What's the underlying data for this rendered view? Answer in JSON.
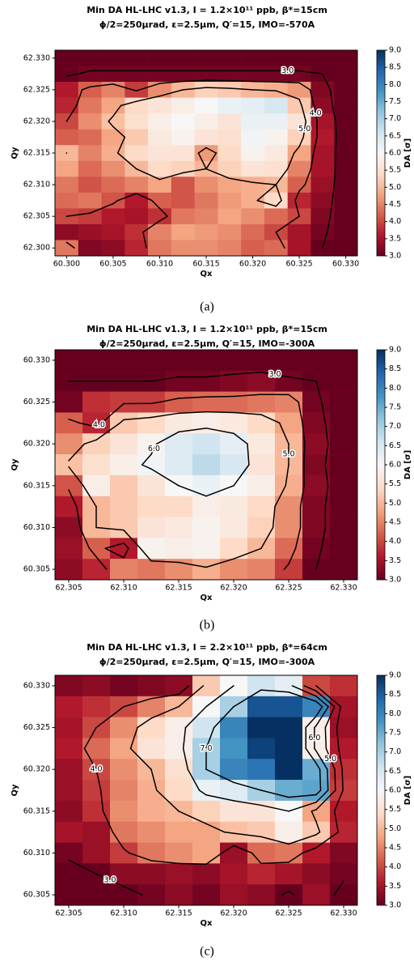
{
  "chart_data": [
    {
      "type": "heatmap",
      "caption": "(a)",
      "title": "Min DA HL-LHC v1.3, I = 1.2×10¹¹ ppb, β*=15cm",
      "subtitle": "ϕ/2=250μrad, ε=2.5μm, Q′=15, IMO=-570A",
      "xlabel": "Qx",
      "ylabel": "Qy",
      "cmap": "RdBu",
      "xlim": [
        60.29875,
        60.33125
      ],
      "ylim": [
        62.29875,
        62.33125
      ],
      "xticks": [
        {
          "value": 60.3,
          "label": "60.300"
        },
        60.305,
        {
          "value": 60.31,
          "label": "60.310"
        },
        60.315,
        {
          "value": 60.32,
          "label": "60.320"
        },
        60.325,
        {
          "value": 60.33,
          "label": "60.330"
        }
      ],
      "yticks": [
        {
          "value": 62.3,
          "label": "62.300"
        },
        62.305,
        {
          "value": 62.31,
          "label": "62.310"
        },
        62.315,
        {
          "value": 62.32,
          "label": "62.320"
        },
        62.325,
        {
          "value": 62.33,
          "label": "62.330"
        }
      ],
      "x": [
        60.3,
        60.3025,
        60.305,
        60.3075,
        60.31,
        60.3125,
        60.315,
        60.3175,
        60.32,
        60.3225,
        60.325,
        60.3275,
        60.33
      ],
      "y": [
        62.33,
        62.3275,
        62.325,
        62.3225,
        62.32,
        62.3175,
        62.315,
        62.3125,
        62.31,
        62.3075,
        62.305,
        62.3025,
        62.3
      ],
      "z": [
        [
          2.6,
          2.6,
          2.6,
          2.6,
          2.6,
          2.6,
          2.6,
          2.6,
          2.6,
          2.6,
          2.6,
          2.6,
          2.6
        ],
        [
          2.9,
          3.1,
          3.1,
          3.1,
          3.1,
          3.1,
          3.1,
          3.1,
          3.1,
          3.1,
          3.1,
          3.0,
          2.6
        ],
        [
          3.6,
          4.2,
          4.5,
          3.9,
          4.6,
          5.0,
          5.3,
          5.2,
          5.0,
          4.9,
          4.7,
          3.2,
          2.6
        ],
        [
          3.7,
          4.4,
          4.8,
          5.4,
          5.6,
          5.8,
          6.0,
          6.2,
          6.3,
          6.5,
          5.2,
          3.3,
          2.6
        ],
        [
          4.0,
          4.6,
          5.1,
          5.5,
          5.8,
          6.0,
          5.8,
          5.6,
          6.2,
          6.2,
          5.6,
          3.5,
          2.6
        ],
        [
          4.2,
          4.3,
          4.8,
          5.2,
          5.7,
          5.9,
          5.6,
          5.5,
          6.1,
          5.9,
          5.3,
          3.6,
          2.6
        ],
        [
          5.0,
          4.5,
          4.9,
          5.4,
          5.6,
          5.6,
          4.7,
          5.4,
          5.9,
          5.7,
          4.8,
          3.5,
          2.6
        ],
        [
          4.8,
          4.3,
          4.6,
          5.0,
          5.4,
          5.3,
          5.0,
          5.3,
          5.6,
          5.5,
          4.5,
          3.5,
          2.6
        ],
        [
          4.4,
          4.1,
          4.3,
          4.5,
          4.8,
          4.1,
          4.6,
          4.8,
          4.9,
          5.0,
          4.2,
          3.4,
          2.6
        ],
        [
          4.3,
          4.4,
          4.1,
          3.6,
          4.2,
          4.1,
          4.4,
          4.7,
          4.9,
          5.4,
          3.7,
          3.3,
          2.6
        ],
        [
          4.0,
          3.9,
          3.6,
          3.5,
          3.8,
          4.4,
          4.5,
          4.8,
          4.6,
          4.3,
          4.0,
          3.2,
          2.6
        ],
        [
          3.3,
          3.4,
          3.5,
          3.8,
          4.5,
          4.8,
          4.7,
          4.6,
          4.3,
          4.0,
          3.5,
          3.1,
          2.6
        ],
        [
          4.4,
          3.2,
          3.3,
          3.7,
          4.4,
          4.6,
          4.6,
          4.5,
          4.2,
          4.3,
          3.5,
          3.0,
          2.6
        ]
      ],
      "contour_levels": [
        {
          "value": 3,
          "label": "3.0"
        },
        {
          "value": 4,
          "label": "4.0"
        },
        {
          "value": 5,
          "label": "5.0"
        }
      ],
      "colorbar": {
        "label": "DA [σ]",
        "lim": [
          3,
          9
        ],
        "ticks": [
          {
            "value": 3,
            "label": "3.0"
          },
          3.5,
          {
            "value": 4,
            "label": "4.0"
          },
          4.5,
          {
            "value": 5,
            "label": "5.0"
          },
          5.5,
          {
            "value": 6,
            "label": "6.0"
          },
          6.5,
          {
            "value": 7,
            "label": "7.0"
          },
          7.5,
          {
            "value": 8,
            "label": "8.0"
          },
          8.5,
          {
            "value": 9,
            "label": "9.0"
          }
        ]
      }
    },
    {
      "type": "heatmap",
      "caption": "(b)",
      "title": "Min DA HL-LHC v1.3, I = 1.2×10¹¹ ppb, β*=15cm",
      "subtitle": "ϕ/2=250μrad, ε=2.5μm, Q′=15, IMO=-300A",
      "xlabel": "Qx",
      "ylabel": "Qy",
      "cmap": "RdBu",
      "xlim": [
        62.30375,
        62.33125
      ],
      "ylim": [
        60.30375,
        60.33125
      ],
      "xticks": [
        62.305,
        {
          "value": 62.31,
          "label": "62.310"
        },
        62.315,
        {
          "value": 62.32,
          "label": "62.320"
        },
        62.325,
        {
          "value": 62.33,
          "label": "62.330"
        }
      ],
      "yticks": [
        60.305,
        {
          "value": 60.31,
          "label": "60.310"
        },
        60.315,
        {
          "value": 60.32,
          "label": "60.320"
        },
        60.325,
        {
          "value": 60.33,
          "label": "60.330"
        }
      ],
      "x": [
        62.305,
        62.3075,
        62.31,
        62.3125,
        62.315,
        62.3175,
        62.32,
        62.3225,
        62.325,
        62.3275,
        62.33
      ],
      "y": [
        60.33,
        60.3275,
        60.325,
        60.3225,
        60.32,
        60.3175,
        60.315,
        60.3125,
        60.31,
        60.3075,
        60.305
      ],
      "z": [
        [
          2.6,
          2.6,
          2.6,
          2.6,
          2.6,
          2.6,
          2.6,
          2.6,
          2.6,
          2.6,
          2.6
        ],
        [
          3.0,
          3.0,
          3.0,
          3.0,
          3.1,
          3.1,
          3.2,
          3.3,
          3.1,
          3.0,
          2.6
        ],
        [
          3.1,
          3.8,
          3.9,
          3.9,
          4.2,
          4.3,
          4.3,
          4.4,
          4.5,
          3.1,
          2.6
        ],
        [
          4.2,
          3.7,
          5.2,
          5.4,
          5.7,
          5.8,
          5.7,
          5.4,
          4.8,
          3.2,
          2.6
        ],
        [
          4.6,
          5.3,
          5.6,
          5.9,
          6.4,
          6.6,
          6.3,
          5.7,
          5.0,
          3.3,
          2.6
        ],
        [
          5.1,
          5.5,
          5.8,
          6.1,
          6.4,
          6.8,
          6.5,
          5.6,
          5.0,
          3.2,
          2.6
        ],
        [
          4.1,
          5.8,
          5.2,
          5.6,
          6.0,
          6.2,
          6.0,
          5.8,
          4.9,
          3.3,
          2.6
        ],
        [
          3.6,
          5.0,
          5.2,
          5.4,
          5.4,
          5.8,
          5.7,
          5.4,
          4.6,
          3.2,
          2.6
        ],
        [
          3.3,
          5.0,
          5.2,
          5.6,
          5.7,
          5.9,
          5.7,
          5.3,
          4.6,
          3.2,
          2.6
        ],
        [
          3.4,
          4.2,
          3.6,
          5.9,
          5.8,
          5.9,
          5.4,
          5.0,
          4.3,
          3.1,
          2.6
        ],
        [
          3.3,
          3.7,
          4.5,
          4.4,
          4.6,
          4.9,
          4.6,
          4.5,
          3.9,
          3.0,
          2.6
        ]
      ],
      "contour_levels": [
        {
          "value": 3,
          "label": "3.0"
        },
        {
          "value": 4,
          "label": "4.0"
        },
        {
          "value": 5,
          "label": "5.0"
        },
        {
          "value": 6,
          "label": "6.0"
        }
      ],
      "colorbar": {
        "label": "DA [σ]",
        "lim": [
          3,
          9
        ],
        "ticks": [
          {
            "value": 3,
            "label": "3.0"
          },
          3.5,
          {
            "value": 4,
            "label": "4.0"
          },
          4.5,
          {
            "value": 5,
            "label": "5.0"
          },
          5.5,
          {
            "value": 6,
            "label": "6.0"
          },
          6.5,
          {
            "value": 7,
            "label": "7.0"
          },
          7.5,
          {
            "value": 8,
            "label": "8.0"
          },
          8.5,
          {
            "value": 9,
            "label": "9.0"
          }
        ]
      }
    },
    {
      "type": "heatmap",
      "caption": "(c)",
      "title": "Min DA HL-LHC v1.3, I = 2.2×10¹¹ ppb, β*=64cm",
      "subtitle": "ϕ/2=250μrad, ε=2.5μm, Q′=15, IMO=-300A",
      "xlabel": "Qx",
      "ylabel": "Qy",
      "cmap": "RdBu",
      "xlim": [
        62.30375,
        62.33125
      ],
      "ylim": [
        60.30375,
        60.33125
      ],
      "xticks": [
        62.305,
        {
          "value": 62.31,
          "label": "62.310"
        },
        62.315,
        {
          "value": 62.32,
          "label": "62.320"
        },
        62.325,
        {
          "value": 62.33,
          "label": "62.330"
        }
      ],
      "yticks": [
        60.305,
        {
          "value": 60.31,
          "label": "60.310"
        },
        60.315,
        {
          "value": 60.32,
          "label": "60.320"
        },
        60.325,
        {
          "value": 60.33,
          "label": "60.330"
        }
      ],
      "x": [
        62.305,
        62.3075,
        62.31,
        62.3125,
        62.315,
        62.3175,
        62.32,
        62.3225,
        62.325,
        62.3275,
        62.33
      ],
      "y": [
        60.33,
        60.3275,
        60.325,
        60.3225,
        60.32,
        60.3175,
        60.315,
        60.3125,
        60.31,
        60.3075,
        60.305
      ],
      "z": [
        [
          3.2,
          3.3,
          3.1,
          3.2,
          3.3,
          5.2,
          6.0,
          6.6,
          6.3,
          4.0,
          3.8
        ],
        [
          3.6,
          3.8,
          4.0,
          4.5,
          5.0,
          6.0,
          7.0,
          8.6,
          8.6,
          8.0,
          3.5
        ],
        [
          3.5,
          4.0,
          4.6,
          5.4,
          5.8,
          6.6,
          8.0,
          9.0,
          9.0,
          5.8,
          3.4
        ],
        [
          3.6,
          4.3,
          4.8,
          5.6,
          5.8,
          7.0,
          7.8,
          8.8,
          9.0,
          5.8,
          3.6
        ],
        [
          3.4,
          4.0,
          4.6,
          5.0,
          5.5,
          7.0,
          8.0,
          8.2,
          9.0,
          7.5,
          3.8
        ],
        [
          3.4,
          3.9,
          4.5,
          4.9,
          5.4,
          6.2,
          6.4,
          7.0,
          7.5,
          7.6,
          3.9
        ],
        [
          3.3,
          3.8,
          4.6,
          4.9,
          5.0,
          5.3,
          5.6,
          5.6,
          6.0,
          4.8,
          3.6
        ],
        [
          3.5,
          3.4,
          4.4,
          4.6,
          4.8,
          4.8,
          5.1,
          5.2,
          5.8,
          5.2,
          3.7
        ],
        [
          3.1,
          3.4,
          3.9,
          4.4,
          4.6,
          4.8,
          3.4,
          4.3,
          4.4,
          3.6,
          3.2
        ],
        [
          2.8,
          3.0,
          3.3,
          3.3,
          3.4,
          3.3,
          3.5,
          3.7,
          3.5,
          3.3,
          3.1
        ],
        [
          2.6,
          2.7,
          2.8,
          3.1,
          3.3,
          3.1,
          3.4,
          3.3,
          2.9,
          3.4,
          2.8
        ]
      ],
      "contour_levels": [
        {
          "value": 3,
          "label": "3.0"
        },
        {
          "value": 4,
          "label": "4.0"
        },
        {
          "value": 5,
          "label": "5.0"
        },
        {
          "value": 6,
          "label": "6.0"
        },
        {
          "value": 7,
          "label": "7.0"
        }
      ],
      "colorbar": {
        "label": "DA [σ]",
        "lim": [
          3,
          9
        ],
        "ticks": [
          {
            "value": 3,
            "label": "3.0"
          },
          3.5,
          {
            "value": 4,
            "label": "4.0"
          },
          4.5,
          {
            "value": 5,
            "label": "5.0"
          },
          5.5,
          {
            "value": 6,
            "label": "6.0"
          },
          6.5,
          {
            "value": 7,
            "label": "7.0"
          },
          7.5,
          {
            "value": 8,
            "label": "8.0"
          },
          8.5,
          {
            "value": 9,
            "label": "9.0"
          }
        ]
      }
    }
  ]
}
